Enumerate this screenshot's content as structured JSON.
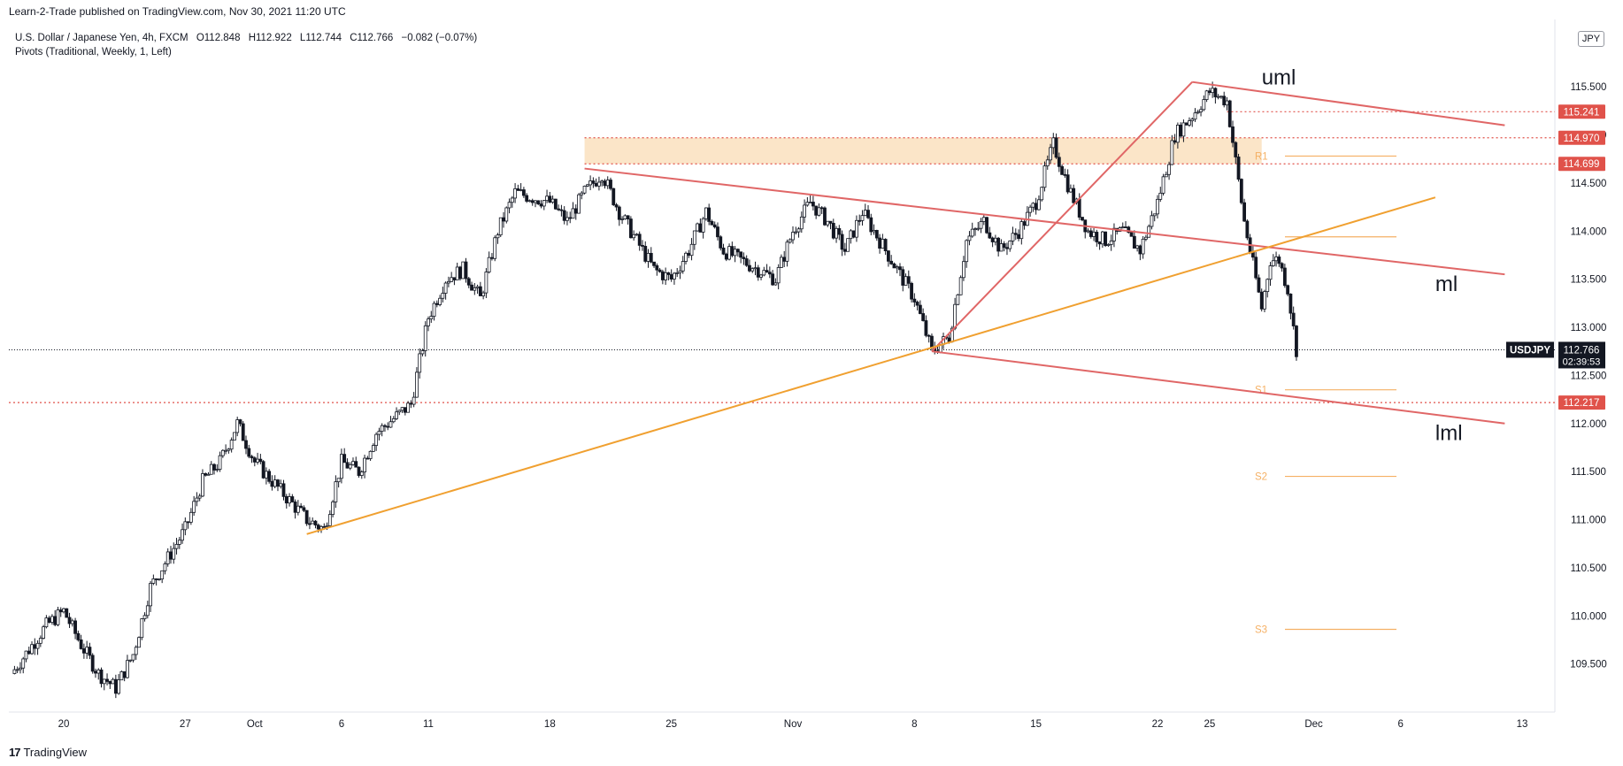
{
  "header": {
    "published": "Learn-2-Trade published on TradingView.com, Nov 30, 2021 11:20 UTC"
  },
  "legend": {
    "symbol": "U.S. Dollar / Japanese Yen, 4h, FXCM",
    "open": "O112.848",
    "high": "H112.922",
    "low": "L112.744",
    "close": "C112.766",
    "change": "−0.082 (−0.07%)",
    "pivots": "Pivots (Traditional, Weekly, 1, Left)"
  },
  "currency": "JPY",
  "branding": {
    "logo_text": "TradingView"
  },
  "colors": {
    "bull": "#131722",
    "bear": "#131722",
    "channel": "#e06666",
    "trendline": "#f0a030",
    "zone": "#fbe5c8",
    "pivot": "#f5b064",
    "price_tag": "#131722",
    "level_tag": "#e0524a"
  },
  "chart_data": {
    "type": "candlestick",
    "title": "U.S. Dollar / Japanese Yen, 4h, FXCM",
    "x_axis_ticks": [
      "20",
      "27",
      "Oct",
      "6",
      "11",
      "18",
      "25",
      "Nov",
      "8",
      "15",
      "22",
      "25",
      "Dec",
      "6",
      "13"
    ],
    "y_axis_ticks": [
      "115.500",
      "115.000",
      "114.500",
      "114.000",
      "113.500",
      "113.000",
      "112.500",
      "112.000",
      "111.500",
      "111.000",
      "110.500",
      "110.000",
      "109.500"
    ],
    "y_range": [
      109.0,
      116.2
    ],
    "swing_path": [
      [
        "Sep 17",
        109.4
      ],
      [
        "Sep 19",
        109.9
      ],
      [
        "Sep 20",
        110.05
      ],
      [
        "Sep 21",
        109.7
      ],
      [
        "Sep 22",
        109.4
      ],
      [
        "Sep 23",
        109.25
      ],
      [
        "Sep 24",
        109.6
      ],
      [
        "Sep 25",
        110.3
      ],
      [
        "Sep 27",
        110.9
      ],
      [
        "Sep 28",
        111.4
      ],
      [
        "Sep 29",
        111.6
      ],
      [
        "Sep 30",
        112.0
      ],
      [
        "Oct 1",
        111.6
      ],
      [
        "Oct 4",
        111.0
      ],
      [
        "Oct 5",
        110.9
      ],
      [
        "Oct 6",
        111.6
      ],
      [
        "Oct 7",
        111.5
      ],
      [
        "Oct 8",
        111.9
      ],
      [
        "Oct 10",
        112.2
      ],
      [
        "Oct 11",
        113.1
      ],
      [
        "Oct 12",
        113.5
      ],
      [
        "Oct 13",
        113.6
      ],
      [
        "Oct 14",
        113.3
      ],
      [
        "Oct 15",
        114.0
      ],
      [
        "Oct 16",
        114.4
      ],
      [
        "Oct 18",
        114.3
      ],
      [
        "Oct 19",
        114.1
      ],
      [
        "Oct 20",
        114.4
      ],
      [
        "Oct 21",
        114.6
      ],
      [
        "Oct 22",
        114.2
      ],
      [
        "Oct 23",
        113.9
      ],
      [
        "Oct 24",
        113.6
      ],
      [
        "Oct 25",
        113.5
      ],
      [
        "Oct 26",
        113.8
      ],
      [
        "Oct 27",
        114.2
      ],
      [
        "Oct 28",
        113.8
      ],
      [
        "Oct 29",
        113.7
      ],
      [
        "Oct 31",
        113.5
      ],
      [
        "Nov 1",
        114.0
      ],
      [
        "Nov 2",
        114.3
      ],
      [
        "Nov 3",
        114.1
      ],
      [
        "Nov 4",
        113.8
      ],
      [
        "Nov 5",
        114.2
      ],
      [
        "Nov 6",
        113.9
      ],
      [
        "Nov 7",
        113.6
      ],
      [
        "Nov 8",
        113.3
      ],
      [
        "Nov 9",
        112.75
      ],
      [
        "Nov 10",
        112.9
      ],
      [
        "Nov 11",
        113.9
      ],
      [
        "Nov 12",
        114.1
      ],
      [
        "Nov 13",
        113.8
      ],
      [
        "Nov 14",
        114.0
      ],
      [
        "Nov 15",
        114.3
      ],
      [
        "Nov 16",
        114.9
      ],
      [
        "Nov 17",
        114.4
      ],
      [
        "Nov 18",
        114.0
      ],
      [
        "Nov 19",
        113.9
      ],
      [
        "Nov 20",
        114.0
      ],
      [
        "Nov 21",
        113.8
      ],
      [
        "Nov 22",
        114.3
      ],
      [
        "Nov 23",
        115.0
      ],
      [
        "Nov 24",
        115.2
      ],
      [
        "Nov 25",
        115.45
      ],
      [
        "Nov 26",
        115.35
      ],
      [
        "Nov 27",
        114.1
      ],
      [
        "Nov 28",
        113.2
      ],
      [
        "Nov 28.5",
        113.7
      ],
      [
        "Nov 29",
        113.7
      ],
      [
        "Nov 29.5",
        113.4
      ],
      [
        "Nov 30",
        112.77
      ]
    ],
    "current_price": {
      "value": 112.766,
      "label": "USDJPY",
      "price_text": "112.766",
      "countdown": "02:39:53"
    },
    "price_levels": [
      {
        "value": 115.241,
        "label": "115.241"
      },
      {
        "value": 114.97,
        "label": "114.970"
      },
      {
        "value": 114.699,
        "label": "114.699"
      },
      {
        "value": 112.217,
        "label": "112.217"
      }
    ],
    "supply_zone": {
      "from": "Oct 20",
      "to": "Nov 28",
      "low": 114.699,
      "high": 114.97
    },
    "pivot_levels": [
      {
        "label": "R1",
        "value": 114.78
      },
      {
        "label": "P",
        "value": 113.94
      },
      {
        "label": "S1",
        "value": 112.35
      },
      {
        "label": "S2",
        "value": 111.45
      },
      {
        "label": "S3",
        "value": 109.86
      }
    ],
    "annotations": [
      {
        "text": "uml",
        "at": [
          "Nov 28",
          115.6
        ]
      },
      {
        "text": "ml",
        "at": [
          "Dec 8",
          113.45
        ]
      },
      {
        "text": "lml",
        "at": [
          "Dec 8",
          111.9
        ]
      }
    ],
    "lines": [
      {
        "name": "upper median line",
        "from": [
          "Nov 24",
          115.55
        ],
        "to": [
          "Dec 12",
          115.1
        ]
      },
      {
        "name": "median line",
        "from": [
          "Oct 20",
          114.65
        ],
        "to": [
          "Dec 12",
          113.55
        ]
      },
      {
        "name": "lower median line",
        "from": [
          "Nov 9",
          112.75
        ],
        "to": [
          "Dec 12",
          112.0
        ]
      },
      {
        "name": "pitchfork handle",
        "from": [
          "Nov 9",
          112.75
        ],
        "to": [
          "Nov 24",
          115.55
        ]
      },
      {
        "name": "uptrend line",
        "from": [
          "Oct 4",
          110.85
        ],
        "to": [
          "Dec 8",
          114.35
        ]
      }
    ]
  }
}
